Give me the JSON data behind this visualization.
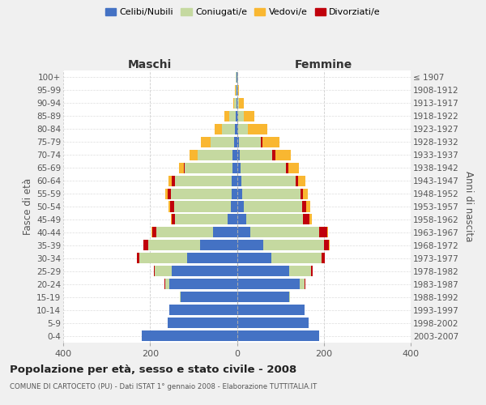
{
  "age_groups": [
    "0-4",
    "5-9",
    "10-14",
    "15-19",
    "20-24",
    "25-29",
    "30-34",
    "35-39",
    "40-44",
    "45-49",
    "50-54",
    "55-59",
    "60-64",
    "65-69",
    "70-74",
    "75-79",
    "80-84",
    "85-89",
    "90-94",
    "95-99",
    "100+"
  ],
  "birth_years": [
    "2003-2007",
    "1998-2002",
    "1993-1997",
    "1988-1992",
    "1983-1987",
    "1978-1982",
    "1973-1977",
    "1968-1972",
    "1963-1967",
    "1958-1962",
    "1953-1957",
    "1948-1952",
    "1943-1947",
    "1938-1942",
    "1933-1937",
    "1928-1932",
    "1923-1927",
    "1918-1922",
    "1913-1917",
    "1908-1912",
    "≤ 1907"
  ],
  "maschi": {
    "celibi": [
      220,
      160,
      155,
      130,
      155,
      150,
      115,
      85,
      55,
      22,
      14,
      12,
      12,
      10,
      10,
      6,
      4,
      3,
      1,
      1,
      1
    ],
    "coniugati": [
      0,
      0,
      1,
      2,
      10,
      40,
      110,
      120,
      130,
      120,
      130,
      140,
      130,
      110,
      80,
      55,
      30,
      15,
      5,
      2,
      1
    ],
    "vedovi": [
      0,
      0,
      0,
      0,
      0,
      0,
      0,
      0,
      1,
      2,
      3,
      5,
      8,
      10,
      20,
      22,
      18,
      10,
      3,
      1,
      0
    ],
    "divorziati": [
      0,
      0,
      0,
      0,
      1,
      2,
      5,
      10,
      10,
      8,
      10,
      8,
      8,
      3,
      0,
      0,
      0,
      0,
      0,
      0,
      0
    ]
  },
  "femmine": {
    "celibi": [
      190,
      165,
      155,
      120,
      145,
      120,
      80,
      60,
      30,
      22,
      15,
      12,
      10,
      8,
      6,
      5,
      3,
      3,
      1,
      1,
      1
    ],
    "coniugati": [
      0,
      0,
      1,
      2,
      10,
      50,
      115,
      140,
      160,
      130,
      135,
      135,
      125,
      105,
      75,
      50,
      22,
      12,
      4,
      1,
      1
    ],
    "vedovi": [
      0,
      0,
      0,
      0,
      0,
      0,
      0,
      1,
      2,
      5,
      8,
      12,
      18,
      25,
      35,
      40,
      45,
      25,
      10,
      2,
      1
    ],
    "divorziati": [
      0,
      0,
      0,
      0,
      2,
      5,
      8,
      12,
      18,
      15,
      10,
      5,
      5,
      5,
      8,
      3,
      0,
      0,
      0,
      0,
      0
    ]
  },
  "colors": {
    "celibi": "#4472c4",
    "coniugati": "#c5d9a0",
    "vedovi": "#f9b731",
    "divorziati": "#c0000b"
  },
  "legend_labels": [
    "Celibi/Nubili",
    "Coniugati/e",
    "Vedovi/e",
    "Divorziati/e"
  ],
  "title": "Popolazione per età, sesso e stato civile - 2008",
  "subtitle": "COMUNE DI CARTOCETO (PU) - Dati ISTAT 1° gennaio 2008 - Elaborazione TUTTITALIA.IT",
  "xlabel_left": "Maschi",
  "xlabel_right": "Femmine",
  "ylabel_left": "Fasce di età",
  "ylabel_right": "Anni di nascita",
  "xlim": 400,
  "bg_color": "#f0f0f0",
  "plot_bg_color": "#ffffff"
}
